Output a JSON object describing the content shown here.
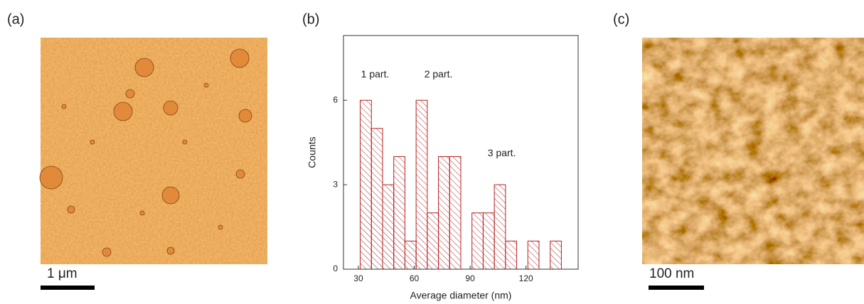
{
  "panels": [
    {
      "label": "(a)",
      "scale_bar": "1 μm"
    },
    {
      "label": "(b)"
    },
    {
      "label": "(c)",
      "scale_bar": "100 nm"
    }
  ],
  "chart_data": {
    "type": "histogram",
    "xlabel": "Average diameter (nm)",
    "ylabel": "Counts",
    "bins": [
      31,
      37,
      43,
      49,
      55,
      61,
      67,
      73,
      79,
      85,
      91,
      97,
      103,
      109,
      115,
      121,
      127,
      133,
      139
    ],
    "values": [
      6,
      5,
      3,
      4,
      1,
      6,
      2,
      4,
      4,
      0,
      2,
      2,
      3,
      1,
      0,
      1,
      0,
      1
    ],
    "xlim": [
      22,
      148
    ],
    "ylim": [
      0,
      8.3
    ],
    "xticks": [
      30,
      60,
      90,
      120
    ],
    "yticks": [
      0,
      3,
      6
    ],
    "color": "#b22222",
    "annotations": [
      {
        "text": "1 part.",
        "x": 39,
        "y": 6.9
      },
      {
        "text": "2 part.",
        "x": 73,
        "y": 6.9
      },
      {
        "text": "3 part.",
        "x": 107,
        "y": 4.1
      }
    ]
  }
}
